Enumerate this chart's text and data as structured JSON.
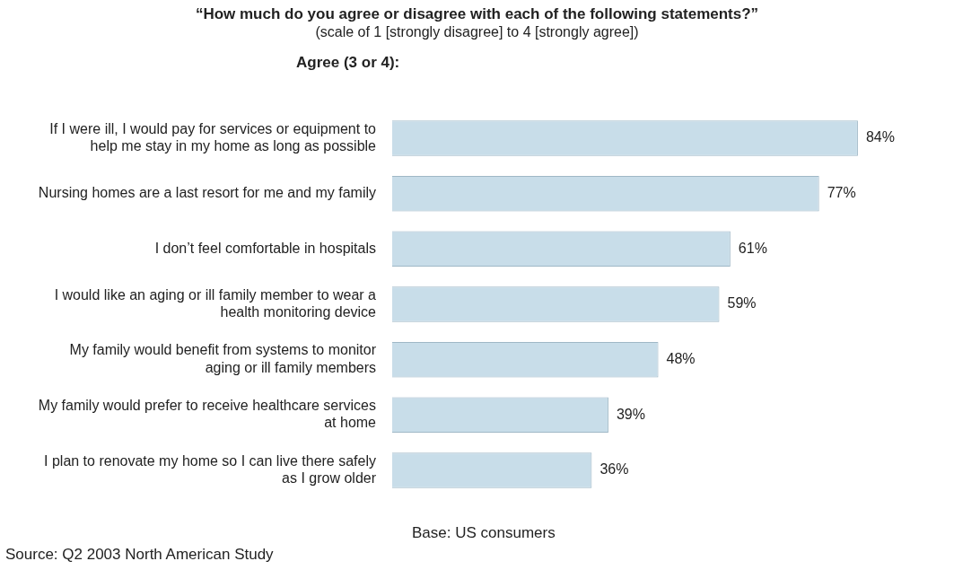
{
  "chart_data": {
    "type": "bar",
    "orientation": "horizontal",
    "title": "“How much do you agree or disagree with each of the following statements?”",
    "subtitle": "(scale of 1 [strongly disagree] to 4 [strongly agree])",
    "categories": [
      "If I were ill, I would pay for services or equipment to help me stay in my home as long as possible",
      "Nursing homes are a last resort for me and my family",
      "I don’t feel comfortable in hospitals",
      "I would like an aging or ill family member to wear a health monitoring device",
      "My family would benefit from systems to monitor aging or ill family members",
      "My family would prefer to receive healthcare services at home",
      "I plan to renovate my home so I can live there safely as I grow older"
    ],
    "values": [
      84,
      77,
      61,
      59,
      48,
      39,
      36
    ],
    "value_labels": [
      "84%",
      "77%",
      "61%",
      "59%",
      "48%",
      "39%",
      "36%"
    ],
    "color": "#c8dde9",
    "legend": false,
    "tick_labels": "y",
    "annotations": [
      "Agree (3 or 4):",
      "Base: US consumers",
      "Source: Q2 2003 North American Study"
    ]
  }
}
